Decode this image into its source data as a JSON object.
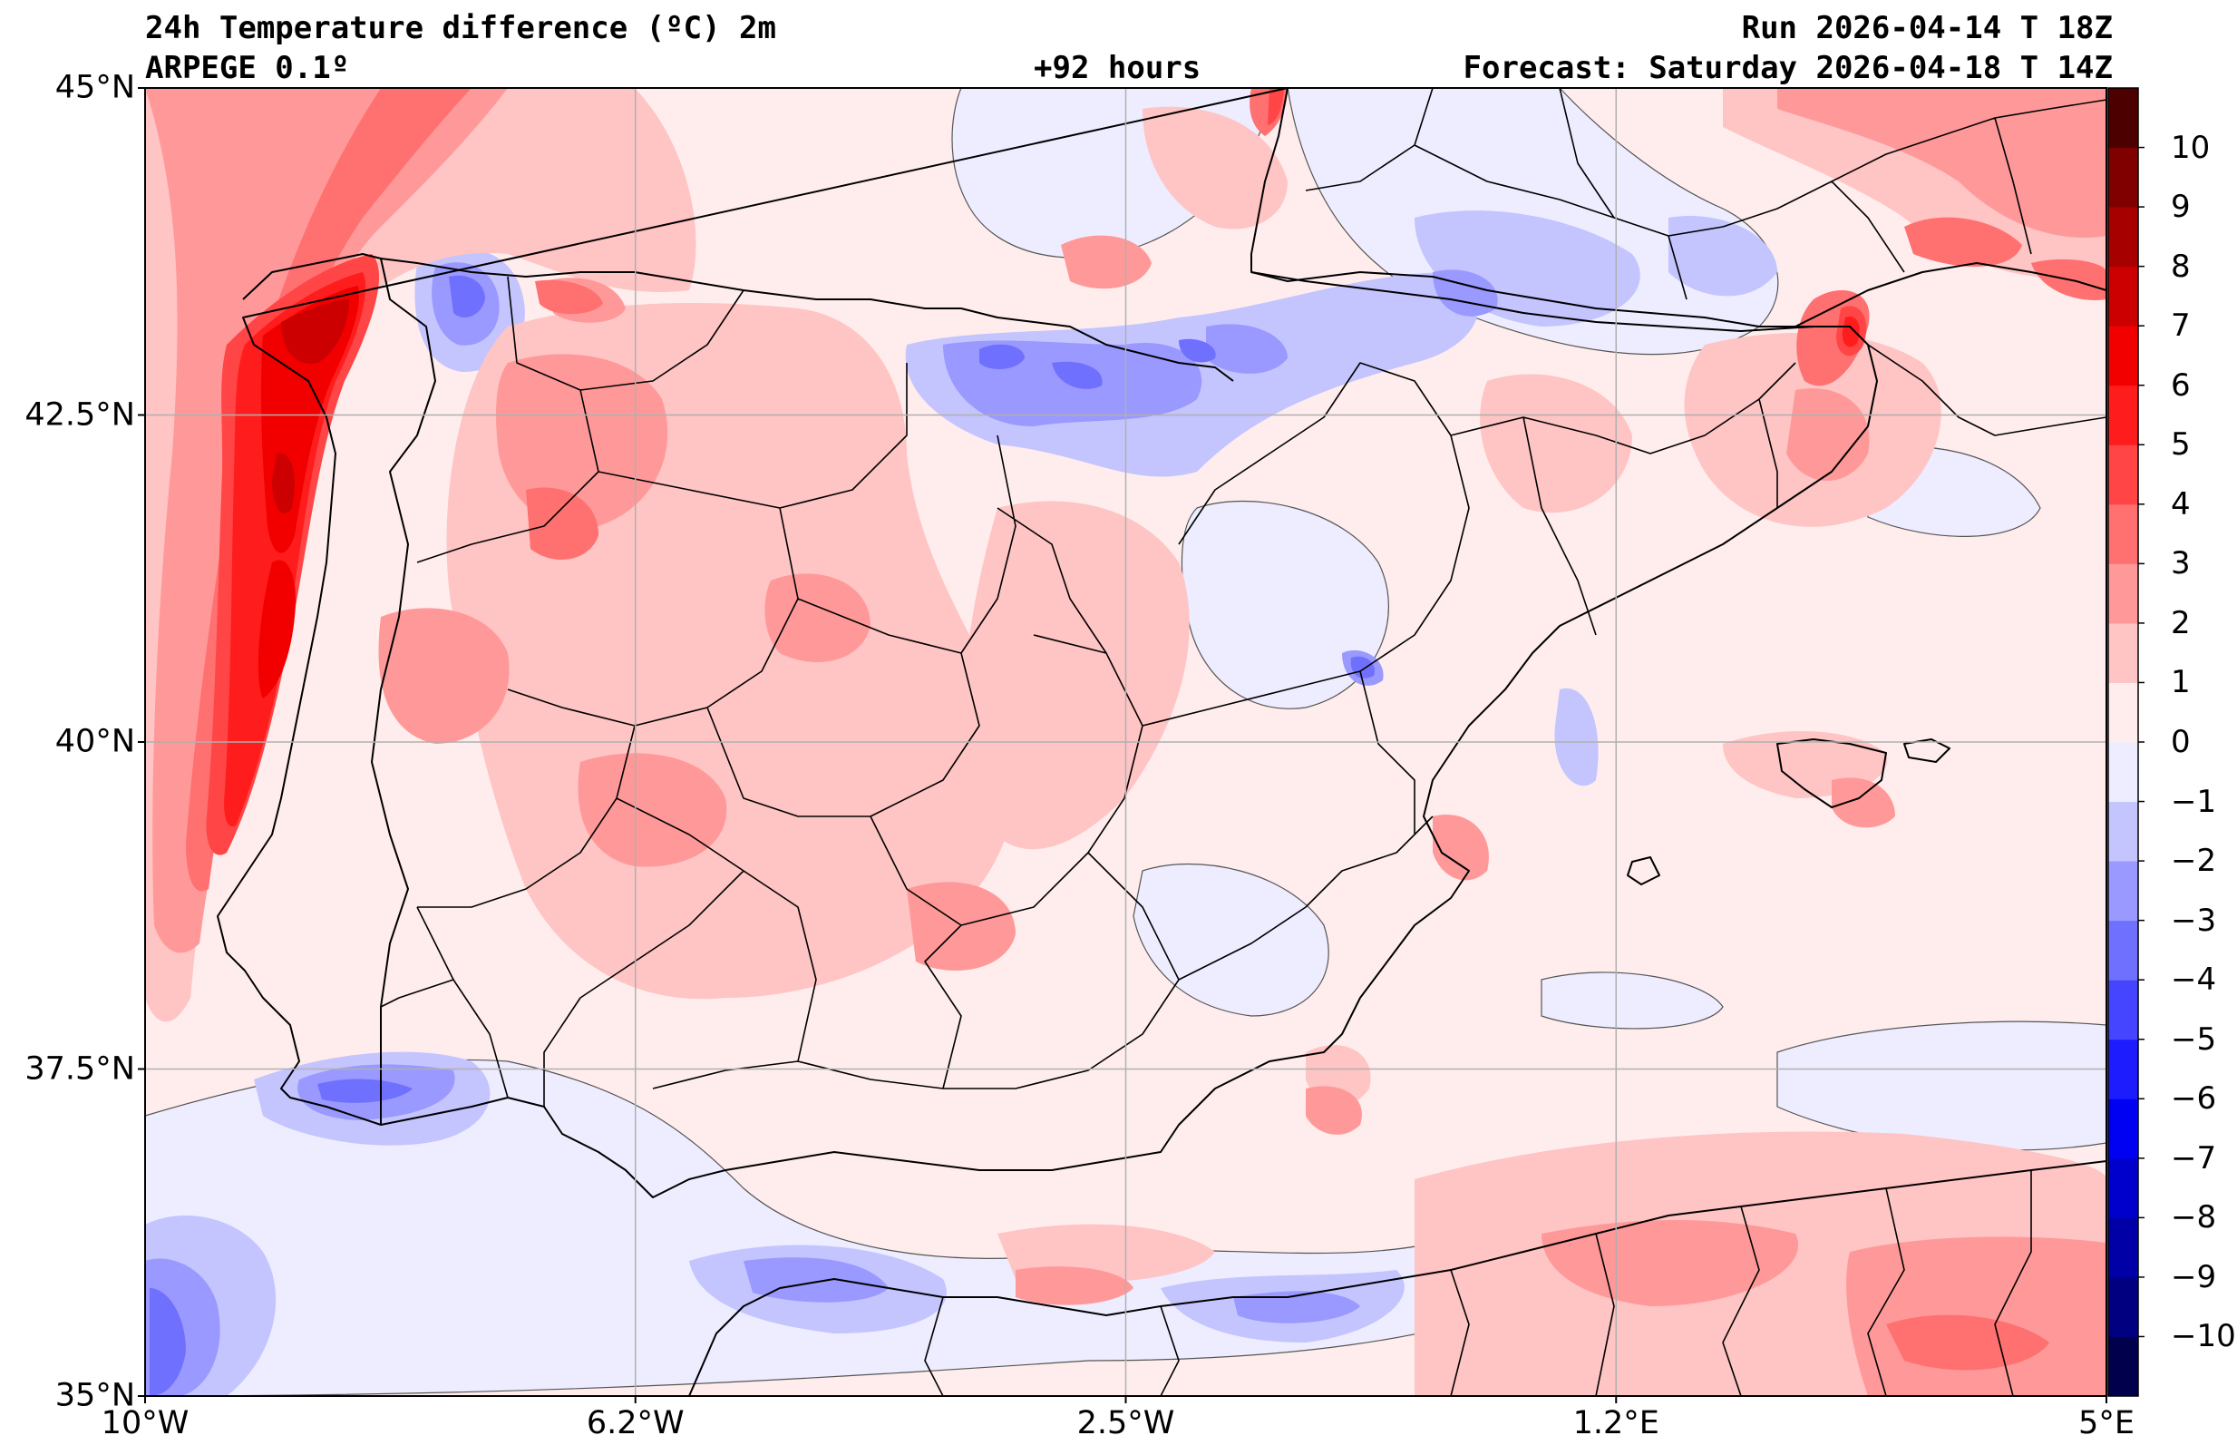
{
  "header": {
    "title": "24h Temperature difference (ºC) 2m",
    "model": "ARPEGE 0.1º",
    "lead_time": "+92 hours",
    "run": "Run 2026-04-14 T 18Z",
    "forecast": "Forecast: Saturday 2026-04-18 T 14Z"
  },
  "map": {
    "extent": {
      "lon_min": -10,
      "lon_max": 5,
      "lat_min": 35,
      "lat_max": 45
    },
    "lat_ticks": [
      {
        "lat": 45,
        "label": "45°N"
      },
      {
        "lat": 42.5,
        "label": "42.5°N"
      },
      {
        "lat": 40,
        "label": "40°N"
      },
      {
        "lat": 37.5,
        "label": "37.5°N"
      },
      {
        "lat": 35,
        "label": "35°N"
      }
    ],
    "lon_ticks": [
      {
        "lon": -10,
        "label": "10°W"
      },
      {
        "lon": -6.25,
        "label": "6.2°W"
      },
      {
        "lon": -2.5,
        "label": "2.5°W"
      },
      {
        "lon": 1.25,
        "label": "1.2°E"
      },
      {
        "lon": 5,
        "label": "5°E"
      }
    ],
    "colors": {
      "neg_10": "#00004c",
      "neg_9": "#000080",
      "neg_8": "#0000a6",
      "neg_7": "#0000cc",
      "neg_6": "#0000f2",
      "neg_5": "#1c1cff",
      "neg_4": "#4545ff",
      "neg_3": "#7070ff",
      "neg_2": "#9999ff",
      "neg_1": "#c4c4ff",
      "zero_neg": "#ededff",
      "zero_pos": "#ffeded",
      "pos_1": "#ffc4c4",
      "pos_2": "#ff9999",
      "pos_3": "#ff7070",
      "pos_4": "#ff4545",
      "pos_5": "#ff1c1c",
      "pos_6": "#f20000",
      "pos_7": "#cc0000",
      "pos_8": "#a60000",
      "pos_9": "#800000",
      "pos_10": "#4c0000",
      "border": "#000000",
      "grid": "#b0b0b0"
    }
  },
  "colorbar": {
    "bins": [
      -11,
      -10,
      -9,
      -8,
      -7,
      -6,
      -5,
      -4,
      -3,
      -2,
      -1,
      0,
      1,
      2,
      3,
      4,
      5,
      6,
      7,
      8,
      9,
      10,
      11
    ],
    "colors": [
      "#00004c",
      "#000080",
      "#0000a6",
      "#0000cc",
      "#0000f2",
      "#1c1cff",
      "#4545ff",
      "#7070ff",
      "#9999ff",
      "#c4c4ff",
      "#ededff",
      "#ffeded",
      "#ffc4c4",
      "#ff9999",
      "#ff7070",
      "#ff4545",
      "#ff1c1c",
      "#f20000",
      "#cc0000",
      "#a60000",
      "#800000",
      "#4c0000"
    ],
    "ticks": [
      {
        "value": 10,
        "label": "10"
      },
      {
        "value": 9,
        "label": "9"
      },
      {
        "value": 8,
        "label": "8"
      },
      {
        "value": 7,
        "label": "7"
      },
      {
        "value": 6,
        "label": "6"
      },
      {
        "value": 5,
        "label": "5"
      },
      {
        "value": 4,
        "label": "4"
      },
      {
        "value": 3,
        "label": "3"
      },
      {
        "value": 2,
        "label": "2"
      },
      {
        "value": 1,
        "label": "1"
      },
      {
        "value": 0,
        "label": "0"
      },
      {
        "value": -1,
        "label": "−1"
      },
      {
        "value": -2,
        "label": "−2"
      },
      {
        "value": -3,
        "label": "−3"
      },
      {
        "value": -4,
        "label": "−4"
      },
      {
        "value": -5,
        "label": "−5"
      },
      {
        "value": -6,
        "label": "−6"
      },
      {
        "value": -7,
        "label": "−7"
      },
      {
        "value": -8,
        "label": "−8"
      },
      {
        "value": -9,
        "label": "−9"
      },
      {
        "value": -10,
        "label": "−10"
      }
    ]
  }
}
